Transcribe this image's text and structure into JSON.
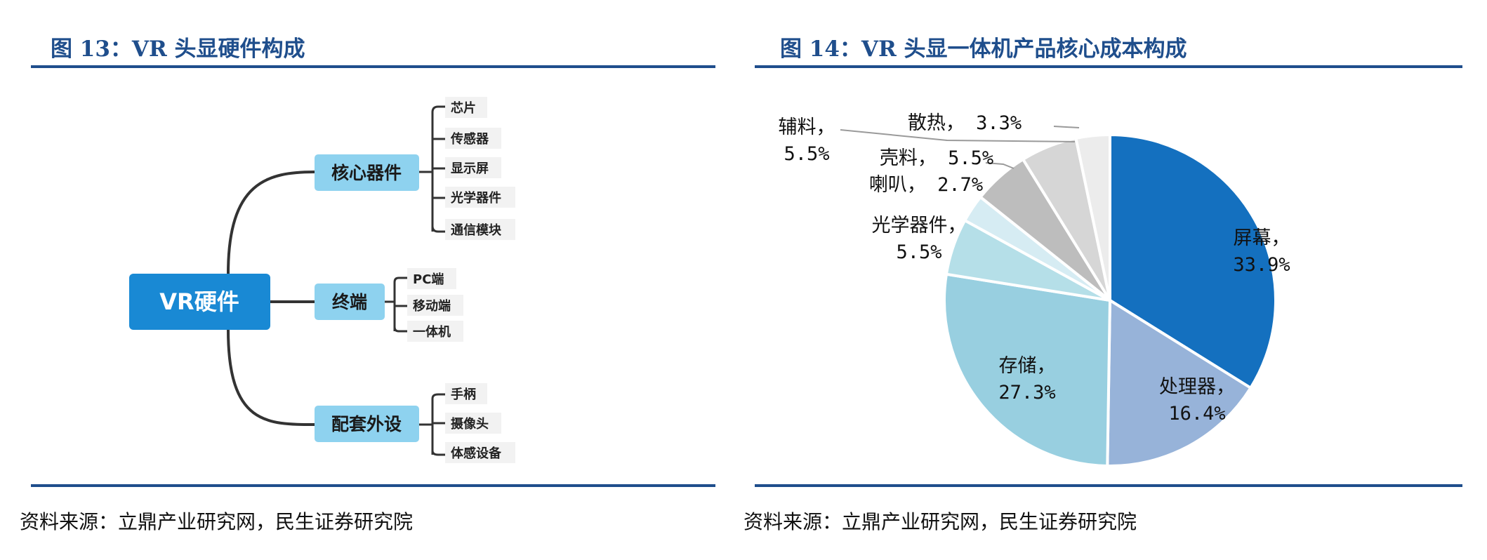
{
  "left_figure": {
    "title": "图 13：VR 头显硬件构成",
    "source": "资料来源：立鼎产业研究网，民生证券研究院",
    "mindmap": {
      "root": "VR硬件",
      "branches": [
        {
          "label": "核心器件",
          "children": [
            "芯片",
            "传感器",
            "显示屏",
            "光学器件",
            "通信模块"
          ]
        },
        {
          "label": "终端",
          "children": [
            "PC端",
            "移动端",
            "一体机"
          ]
        },
        {
          "label": "配套外设",
          "children": [
            "手柄",
            "摄像头",
            "体感设备"
          ]
        }
      ]
    },
    "colors": {
      "root": "#1989d4",
      "branch": "#8ed2ef",
      "line": "#333333"
    }
  },
  "right_figure": {
    "title": "图 14：VR 头显一体机产品核心成本构成",
    "source": "资料来源：立鼎产业研究网，民生证券研究院",
    "chart_data": {
      "type": "pie",
      "title": "",
      "slices": [
        {
          "name": "屏幕",
          "value": 33.9,
          "label_name": "屏幕，",
          "label_value": "33.9%",
          "color": "#1470bf"
        },
        {
          "name": "处理器",
          "value": 16.4,
          "label_name": "处理器，",
          "label_value": "16.4%",
          "color": "#97b3d9"
        },
        {
          "name": "存储",
          "value": 27.3,
          "label_name": "存储，",
          "label_value": "27.3%",
          "color": "#98cfe0"
        },
        {
          "name": "光学器件",
          "value": 5.5,
          "label_name": "光学器件，",
          "label_value": "5.5%",
          "color": "#b5dfe8"
        },
        {
          "name": "喇叭",
          "value": 2.7,
          "label_name": "喇叭，",
          "label_value": "2.7%",
          "color": "#d6ecf3"
        },
        {
          "name": "壳料",
          "value": 5.5,
          "label_name": "壳料，",
          "label_value": "5.5%",
          "color": "#bdbdbd"
        },
        {
          "name": "辅料",
          "value": 5.5,
          "label_name": "辅料，",
          "label_value": "5.5%",
          "color": "#d6d6d6"
        },
        {
          "name": "散热",
          "value": 3.3,
          "label_name": "散热，",
          "label_value": "3.3%",
          "color": "#ececec"
        }
      ],
      "start": "12 o'clock, clockwise",
      "legend": "none (labels beside slices)"
    }
  }
}
